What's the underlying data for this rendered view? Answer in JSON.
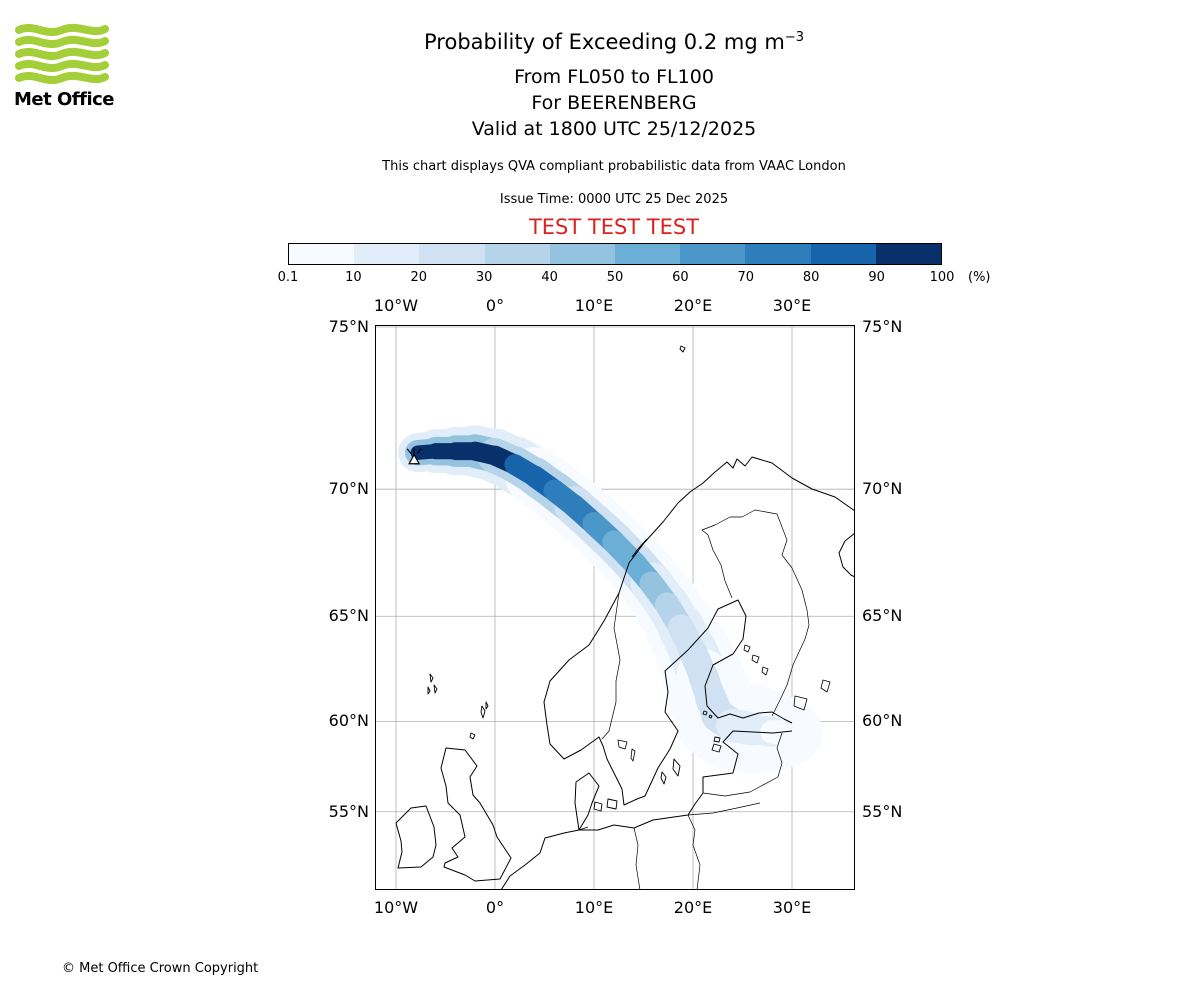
{
  "header": {
    "logo_text": "Met Office",
    "logo_color": "#a4cf38",
    "title": "Probability of Exceeding 0.2 mg m",
    "title_exp": "−3",
    "subtitle1": "From FL050 to FL100",
    "subtitle2": "For BEERENBERG",
    "subtitle3": "Valid at 1800 UTC 25/12/2025",
    "note": "This chart displays QVA compliant probabilistic data from VAAC London",
    "issue_time": "Issue Time: 0000 UTC 25 Dec 2025",
    "test_banner": "TEST TEST TEST",
    "test_color": "#d8231f"
  },
  "colorbar": {
    "ticks": [
      "0.1",
      "10",
      "20",
      "30",
      "40",
      "50",
      "60",
      "70",
      "80",
      "90",
      "100"
    ],
    "unit": "(%)",
    "colors": [
      "#f7fbff",
      "#e1edf8",
      "#cfe1f2",
      "#b5d4e9",
      "#93c3df",
      "#6baed6",
      "#4b97c9",
      "#2e7ebc",
      "#1864aa",
      "#08306b"
    ]
  },
  "map": {
    "grid_color": "#b0b0b0",
    "lon_ticks": [
      {
        "label": "10°W",
        "lon": -10
      },
      {
        "label": "0°",
        "lon": 0
      },
      {
        "label": "10°E",
        "lon": 10
      },
      {
        "label": "20°E",
        "lon": 20
      },
      {
        "label": "30°E",
        "lon": 30
      }
    ],
    "lat_ticks": [
      {
        "label": "75°N",
        "lat": 75
      },
      {
        "label": "70°N",
        "lat": 70
      },
      {
        "label": "65°N",
        "lat": 65
      },
      {
        "label": "60°N",
        "lat": 60
      },
      {
        "label": "55°N",
        "lat": 55
      }
    ]
  },
  "chart_data": {
    "type": "heatmap",
    "title": "Probability of Exceeding 0.2 mg m^-3",
    "threshold": "0.2 mg m^-3",
    "flight_levels": "FL050 to FL100",
    "volcano": {
      "name": "BEERENBERG",
      "lon": -8.17,
      "lat": 71.08
    },
    "valid_time": "1800 UTC 25/12/2025",
    "issue_time": "0000 UTC 25 Dec 2025",
    "units": "%",
    "probability_bins": [
      0.1,
      10,
      20,
      30,
      40,
      50,
      60,
      70,
      80,
      90,
      100
    ],
    "palette": "Blues",
    "extent": {
      "lon": [
        -12.1,
        36.4
      ],
      "lat": [
        50.1,
        75.2
      ]
    },
    "plume_point_format": [
      "lon",
      "lat",
      "probability_percent",
      "width_px"
    ],
    "plume": [
      [
        -7.8,
        71.25,
        100,
        16
      ],
      [
        -6.0,
        71.3,
        100,
        18
      ],
      [
        -4.0,
        71.3,
        100,
        20
      ],
      [
        -2.0,
        71.3,
        98,
        22
      ],
      [
        0.0,
        71.15,
        95,
        23
      ],
      [
        2.0,
        70.85,
        90,
        24
      ],
      [
        4.0,
        70.45,
        85,
        25
      ],
      [
        6.0,
        69.95,
        80,
        26
      ],
      [
        8.0,
        69.4,
        74,
        26
      ],
      [
        10.0,
        68.75,
        68,
        27
      ],
      [
        12.0,
        68.05,
        62,
        27
      ],
      [
        14.0,
        67.25,
        55,
        27
      ],
      [
        15.8,
        66.4,
        48,
        28
      ],
      [
        17.4,
        65.5,
        40,
        28
      ],
      [
        18.8,
        64.5,
        32,
        30
      ],
      [
        20.0,
        63.4,
        26,
        32
      ],
      [
        21.0,
        62.3,
        22,
        34
      ],
      [
        21.8,
        61.2,
        20,
        36
      ],
      [
        22.5,
        60.3,
        24,
        38
      ],
      [
        24.0,
        59.8,
        18,
        40
      ],
      [
        26.0,
        59.6,
        12,
        38
      ],
      [
        28.0,
        59.45,
        8,
        32
      ],
      [
        29.8,
        59.4,
        5,
        24
      ]
    ]
  },
  "footer": {
    "copyright": "© Met Office Crown Copyright"
  }
}
